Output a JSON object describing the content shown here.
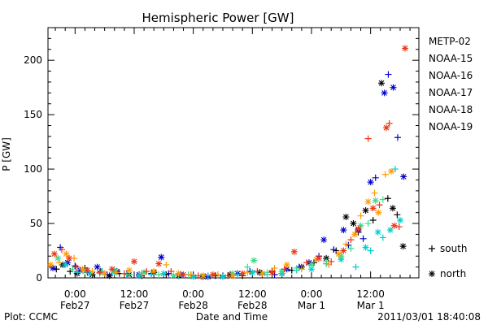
{
  "chart_data": {
    "type": "scatter",
    "title": "Hemispheric Power [GW]",
    "xlabel": "Date and Time",
    "ylabel": "P [GW]",
    "ylim": [
      0,
      230
    ],
    "yticks": [
      0,
      50,
      100,
      150,
      200
    ],
    "xticks": [
      {
        "t": 12,
        "line1": "0:00",
        "line2": "Feb27"
      },
      {
        "t": 24,
        "line1": "12:00",
        "line2": "Feb27"
      },
      {
        "t": 36,
        "line1": "0:00",
        "line2": "Feb28"
      },
      {
        "t": 48,
        "line1": "12:00",
        "line2": "Feb28"
      },
      {
        "t": 60,
        "line1": "0:00",
        "line2": "Mar 1"
      },
      {
        "t": 72,
        "line1": "12:00",
        "line2": "Mar 1"
      }
    ],
    "x_unit": "hours from 2011-02-26 12:00 UTC",
    "xlim": [
      6.5,
      81.8
    ],
    "grid": false,
    "legend_position": "right",
    "marker_legend": [
      {
        "symbol": "+",
        "label": "south"
      },
      {
        "symbol": "*",
        "label": "north"
      }
    ],
    "series": [
      {
        "name": "METP-02",
        "color": "#000000",
        "points": [
          [
            8.2,
            8,
            "+"
          ],
          [
            9.5,
            12,
            "*"
          ],
          [
            11.0,
            6,
            "+"
          ],
          [
            12.4,
            4,
            "*"
          ],
          [
            14.0,
            9,
            "+"
          ],
          [
            15.5,
            3,
            "*"
          ],
          [
            17.2,
            6,
            "+"
          ],
          [
            19.0,
            2,
            "*"
          ],
          [
            21.0,
            4,
            "+"
          ],
          [
            23.0,
            3,
            "*"
          ],
          [
            25.5,
            2,
            "+"
          ],
          [
            28.0,
            5,
            "*"
          ],
          [
            30.5,
            3,
            "+"
          ],
          [
            33.0,
            2,
            "*"
          ],
          [
            35.5,
            3,
            "+"
          ],
          [
            38.0,
            1,
            "*"
          ],
          [
            40.5,
            2,
            "+"
          ],
          [
            43.5,
            3,
            "*"
          ],
          [
            46.0,
            2,
            "+"
          ],
          [
            49.5,
            5,
            "*"
          ],
          [
            52.0,
            6,
            "+"
          ],
          [
            54.0,
            4,
            "*"
          ],
          [
            56.0,
            7,
            "+"
          ],
          [
            58.0,
            10,
            "*"
          ],
          [
            60.5,
            14,
            "+"
          ],
          [
            63.0,
            18,
            "*"
          ],
          [
            65.0,
            25,
            "+"
          ],
          [
            67.0,
            56,
            "*"
          ],
          [
            68.5,
            50,
            "*"
          ],
          [
            69.5,
            42,
            "+"
          ],
          [
            71.0,
            62,
            "*"
          ],
          [
            72.5,
            53,
            "+"
          ],
          [
            74.2,
            179,
            "*"
          ],
          [
            75.5,
            73,
            "+"
          ],
          [
            76.5,
            64,
            "*"
          ],
          [
            77.4,
            58,
            "+"
          ],
          [
            78.6,
            29,
            "*"
          ]
        ]
      },
      {
        "name": "NOAA-15",
        "color": "#0000cc",
        "points": [
          [
            7.5,
            9,
            "*"
          ],
          [
            9.0,
            28,
            "+"
          ],
          [
            10.5,
            14,
            "*"
          ],
          [
            12.0,
            11,
            "+"
          ],
          [
            13.0,
            7,
            "*"
          ],
          [
            14.5,
            5,
            "+"
          ],
          [
            16.5,
            10,
            "*"
          ],
          [
            18.5,
            3,
            "+"
          ],
          [
            20.5,
            6,
            "*"
          ],
          [
            22.5,
            4,
            "+"
          ],
          [
            25.0,
            3,
            "*"
          ],
          [
            27.5,
            4,
            "+"
          ],
          [
            29.5,
            19,
            "*"
          ],
          [
            31.0,
            4,
            "+"
          ],
          [
            33.5,
            3,
            "*"
          ],
          [
            36.0,
            2,
            "+"
          ],
          [
            39.0,
            1,
            "*"
          ],
          [
            42.0,
            2,
            "+"
          ],
          [
            45.0,
            4,
            "*"
          ],
          [
            47.5,
            6,
            "+"
          ],
          [
            50.0,
            4,
            "*"
          ],
          [
            52.5,
            3,
            "+"
          ],
          [
            55.0,
            8,
            "*"
          ],
          [
            57.5,
            10,
            "+"
          ],
          [
            59.5,
            14,
            "*"
          ],
          [
            61.5,
            20,
            "+"
          ],
          [
            62.5,
            35,
            "*"
          ],
          [
            64.5,
            26,
            "+"
          ],
          [
            66.5,
            44,
            "*"
          ],
          [
            67.5,
            30,
            "+"
          ],
          [
            69.5,
            44,
            "*"
          ],
          [
            70.5,
            36,
            "+"
          ],
          [
            72.0,
            88,
            "*"
          ],
          [
            73.0,
            92,
            "+"
          ],
          [
            74.8,
            170,
            "*"
          ],
          [
            75.6,
            187,
            "+"
          ],
          [
            76.6,
            175,
            "*"
          ],
          [
            77.5,
            129,
            "+"
          ],
          [
            78.7,
            93,
            "*"
          ]
        ]
      },
      {
        "name": "NOAA-16",
        "color": "#00cccc",
        "points": [
          [
            10.0,
            12,
            "*"
          ],
          [
            12.5,
            5,
            "+"
          ],
          [
            15.0,
            4,
            "*"
          ],
          [
            17.5,
            6,
            "+"
          ],
          [
            20.0,
            5,
            "*"
          ],
          [
            22.5,
            3,
            "+"
          ],
          [
            25.0,
            2,
            "*"
          ],
          [
            27.5,
            3,
            "+"
          ],
          [
            30.0,
            4,
            "*"
          ],
          [
            33.0,
            2,
            "+"
          ],
          [
            36.0,
            1,
            "*"
          ],
          [
            39.0,
            2,
            "+"
          ],
          [
            42.0,
            1,
            "*"
          ],
          [
            45.0,
            3,
            "+"
          ],
          [
            48.0,
            5,
            "*"
          ],
          [
            51.0,
            3,
            "+"
          ],
          [
            54.0,
            4,
            "*"
          ],
          [
            57.0,
            7,
            "+"
          ],
          [
            60.0,
            8,
            "*"
          ],
          [
            63.0,
            13,
            "+"
          ],
          [
            66.0,
            17,
            "*"
          ],
          [
            69.0,
            10,
            "+"
          ],
          [
            71.0,
            28,
            "*"
          ],
          [
            72.0,
            25,
            "+"
          ],
          [
            73.5,
            42,
            "*"
          ],
          [
            74.5,
            37,
            "+"
          ],
          [
            76.0,
            44,
            "*"
          ],
          [
            77.0,
            100,
            "+"
          ],
          [
            78.0,
            53,
            "*"
          ]
        ]
      },
      {
        "name": "NOAA-17",
        "color": "#33dd88",
        "points": [
          [
            8.5,
            18,
            "*"
          ],
          [
            11.5,
            8,
            "+"
          ],
          [
            14.0,
            6,
            "*"
          ],
          [
            17.0,
            4,
            "+"
          ],
          [
            20.0,
            7,
            "*"
          ],
          [
            23.0,
            3,
            "+"
          ],
          [
            26.0,
            5,
            "*"
          ],
          [
            29.0,
            3,
            "+"
          ],
          [
            32.0,
            2,
            "*"
          ],
          [
            35.0,
            3,
            "+"
          ],
          [
            38.0,
            2,
            "*"
          ],
          [
            41.0,
            3,
            "+"
          ],
          [
            44.0,
            4,
            "*"
          ],
          [
            47.0,
            10,
            "+"
          ],
          [
            48.3,
            16,
            "*"
          ],
          [
            51.0,
            5,
            "+"
          ],
          [
            54.0,
            6,
            "*"
          ],
          [
            57.0,
            9,
            "+"
          ],
          [
            60.0,
            12,
            "*"
          ],
          [
            63.0,
            15,
            "+"
          ],
          [
            66.0,
            20,
            "*"
          ],
          [
            68.0,
            27,
            "+"
          ],
          [
            70.0,
            48,
            "*"
          ],
          [
            71.5,
            50,
            "+"
          ],
          [
            73.0,
            71,
            "*"
          ],
          [
            74.5,
            72,
            "+"
          ]
        ]
      },
      {
        "name": "NOAA-18",
        "color": "#ff9900",
        "points": [
          [
            7.0,
            12,
            "*"
          ],
          [
            8.8,
            14,
            "+"
          ],
          [
            10.2,
            22,
            "*"
          ],
          [
            11.8,
            18,
            "+"
          ],
          [
            13.5,
            8,
            "*"
          ],
          [
            15.5,
            6,
            "+"
          ],
          [
            18.0,
            4,
            "*"
          ],
          [
            20.5,
            5,
            "+"
          ],
          [
            23.0,
            7,
            "*"
          ],
          [
            25.5,
            4,
            "+"
          ],
          [
            28.0,
            6,
            "*"
          ],
          [
            30.5,
            12,
            "+"
          ],
          [
            33.0,
            4,
            "*"
          ],
          [
            35.5,
            3,
            "+"
          ],
          [
            38.0,
            2,
            "*"
          ],
          [
            41.0,
            3,
            "+"
          ],
          [
            44.0,
            2,
            "*"
          ],
          [
            47.0,
            5,
            "+"
          ],
          [
            50.0,
            4,
            "*"
          ],
          [
            52.5,
            9,
            "+"
          ],
          [
            55.0,
            12,
            "*"
          ],
          [
            58.0,
            8,
            "+"
          ],
          [
            61.0,
            17,
            "*"
          ],
          [
            63.5,
            12,
            "+"
          ],
          [
            65.5,
            22,
            "*"
          ],
          [
            67.0,
            31,
            "+"
          ],
          [
            68.8,
            40,
            "*"
          ],
          [
            70.0,
            57,
            "+"
          ],
          [
            71.5,
            70,
            "*"
          ],
          [
            72.8,
            78,
            "+"
          ],
          [
            73.6,
            60,
            "*"
          ],
          [
            75.0,
            95,
            "+"
          ],
          [
            76.2,
            98,
            "*"
          ]
        ]
      },
      {
        "name": "NOAA-19",
        "color": "#ee3311",
        "points": [
          [
            7.8,
            22,
            "*"
          ],
          [
            9.3,
            26,
            "+"
          ],
          [
            10.8,
            18,
            "*"
          ],
          [
            12.2,
            10,
            "+"
          ],
          [
            14.5,
            7,
            "*"
          ],
          [
            17.0,
            5,
            "+"
          ],
          [
            19.5,
            8,
            "*"
          ],
          [
            22.0,
            4,
            "+"
          ],
          [
            24.0,
            15,
            "*"
          ],
          [
            26.5,
            6,
            "+"
          ],
          [
            29.0,
            13,
            "*"
          ],
          [
            31.5,
            6,
            "+"
          ],
          [
            34.0,
            3,
            "*"
          ],
          [
            37.0,
            2,
            "+"
          ],
          [
            40.0,
            3,
            "*"
          ],
          [
            43.0,
            2,
            "+"
          ],
          [
            46.0,
            4,
            "*"
          ],
          [
            49.0,
            6,
            "+"
          ],
          [
            52.0,
            5,
            "*"
          ],
          [
            54.5,
            8,
            "+"
          ],
          [
            56.5,
            24,
            "*"
          ],
          [
            59.0,
            14,
            "+"
          ],
          [
            61.5,
            18,
            "*"
          ],
          [
            64.0,
            15,
            "+"
          ],
          [
            66.5,
            25,
            "*"
          ],
          [
            68.0,
            35,
            "+"
          ],
          [
            69.5,
            45,
            "*"
          ],
          [
            71.5,
            128,
            "+"
          ],
          [
            72.5,
            64,
            "*"
          ],
          [
            73.8,
            67,
            "+"
          ],
          [
            75.2,
            138,
            "*"
          ],
          [
            75.8,
            142,
            "+"
          ],
          [
            76.8,
            48,
            "*"
          ],
          [
            77.8,
            47,
            "+"
          ],
          [
            79.0,
            211,
            "*"
          ]
        ]
      }
    ]
  },
  "footer": {
    "plot_credit": "Plot: CCMC",
    "timestamp": "2011/03/01  18:40:08"
  }
}
